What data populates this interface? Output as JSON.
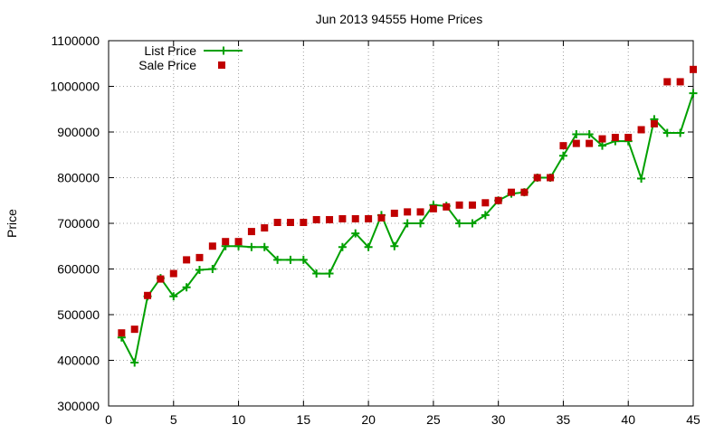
{
  "chart_data": {
    "type": "line",
    "title": "Jun 2013 94555 Home Prices",
    "xlabel": "",
    "ylabel": "Price",
    "xlim": [
      0,
      45
    ],
    "ylim": [
      300000,
      1100000
    ],
    "x_ticks": [
      0,
      5,
      10,
      15,
      20,
      25,
      30,
      35,
      40,
      45
    ],
    "y_ticks": [
      300000,
      400000,
      500000,
      600000,
      700000,
      800000,
      900000,
      1000000,
      1100000
    ],
    "x_tick_labels": [
      "0",
      "5",
      "10",
      "15",
      "20",
      "25",
      "30",
      "35",
      "40",
      "45"
    ],
    "y_tick_labels": [
      "300000",
      "400000",
      "500000",
      "600000",
      "700000",
      "800000",
      "900000",
      "1000000",
      "1100000"
    ],
    "grid": true,
    "legend_position": "top-left",
    "x": [
      1,
      2,
      3,
      4,
      5,
      6,
      7,
      8,
      9,
      10,
      11,
      12,
      13,
      14,
      15,
      16,
      17,
      18,
      19,
      20,
      21,
      22,
      23,
      24,
      25,
      26,
      27,
      28,
      29,
      30,
      31,
      32,
      33,
      34,
      35,
      36,
      37,
      38,
      39,
      40,
      41,
      42,
      43,
      44,
      45
    ],
    "series": [
      {
        "name": "List Price",
        "style": "line+cross",
        "color": "#00a000",
        "values": [
          450000,
          395000,
          540000,
          580000,
          540000,
          560000,
          598000,
          600000,
          650000,
          650000,
          648000,
          648000,
          620000,
          620000,
          620000,
          590000,
          590000,
          648000,
          678000,
          648000,
          718000,
          650000,
          700000,
          700000,
          740000,
          738000,
          700000,
          700000,
          718000,
          750000,
          765000,
          768000,
          800000,
          800000,
          848000,
          895000,
          895000,
          870000,
          880000,
          880000,
          798000,
          928000,
          898000,
          898000,
          985000
        ]
      },
      {
        "name": "Sale Price",
        "style": "square",
        "color": "#c00000",
        "values": [
          460000,
          468000,
          542000,
          578000,
          590000,
          620000,
          625000,
          650000,
          660000,
          660000,
          682000,
          690000,
          702000,
          702000,
          702000,
          708000,
          708000,
          710000,
          710000,
          710000,
          712000,
          722000,
          725000,
          725000,
          732000,
          736000,
          740000,
          740000,
          745000,
          750000,
          768000,
          768000,
          800000,
          800000,
          870000,
          875000,
          875000,
          885000,
          888000,
          888000,
          905000,
          918000,
          1010000,
          1010000,
          1037000
        ]
      }
    ]
  }
}
